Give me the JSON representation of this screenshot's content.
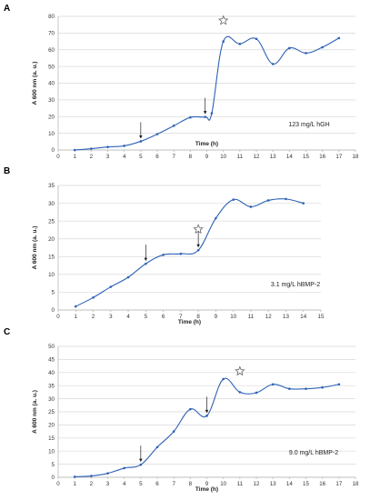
{
  "chart_data": [
    {
      "panel": "A",
      "type": "line",
      "xlabel": "Time (h)",
      "ylabel": "A 600 nm (a. u.)",
      "xlim": [
        0,
        18
      ],
      "ylim": [
        0,
        80
      ],
      "ytick_step": 10,
      "annotation": "123 mg/L hGH",
      "x": [
        1,
        2,
        3,
        4,
        5,
        6,
        7,
        8,
        8.9,
        9.3,
        10,
        11,
        12,
        13,
        14,
        15,
        16,
        17
      ],
      "y": [
        0,
        0.8,
        1.8,
        2.5,
        5.2,
        9.5,
        14.5,
        19.5,
        19.8,
        22,
        65,
        63.5,
        66.5,
        51.5,
        61,
        58,
        61.5,
        67
      ],
      "arrows_at": [
        5,
        8.9
      ],
      "star_at": 10
    },
    {
      "panel": "B",
      "type": "line",
      "xlabel": "Time (h)",
      "ylabel": "A 600 nm (a. u.)",
      "xlim": [
        0,
        15
      ],
      "ylim": [
        0,
        35
      ],
      "ytick_step": 5,
      "annotation": "3.1 mg/L hBMP-2",
      "x": [
        1,
        2,
        3,
        4,
        5,
        6,
        7,
        8,
        9,
        10,
        11,
        12,
        13,
        14
      ],
      "y": [
        1,
        3.5,
        6.5,
        9.2,
        13,
        15.5,
        15.8,
        16.8,
        25.8,
        31,
        29,
        30.8,
        31.2,
        30
      ],
      "arrows_at": [
        5,
        8
      ],
      "star_at": 8
    },
    {
      "panel": "C",
      "type": "line",
      "xlabel": "Time (h)",
      "ylabel": "A 600 nm (a. u.)",
      "xlim": [
        0,
        18
      ],
      "ylim": [
        0,
        50
      ],
      "ytick_step": 5,
      "annotation": "9.0 mg/L hBMP-2",
      "x": [
        1,
        2,
        3,
        4,
        5,
        6,
        7,
        8,
        9,
        10,
        11,
        12,
        13,
        14,
        15,
        16,
        17
      ],
      "y": [
        0.2,
        0.5,
        1.5,
        3.5,
        4.8,
        11.5,
        17.5,
        26,
        23.5,
        37.5,
        32.5,
        32.3,
        35.5,
        33.8,
        33.8,
        34.3,
        35.5
      ],
      "arrows_at": [
        5,
        9
      ],
      "star_at": 11
    }
  ]
}
